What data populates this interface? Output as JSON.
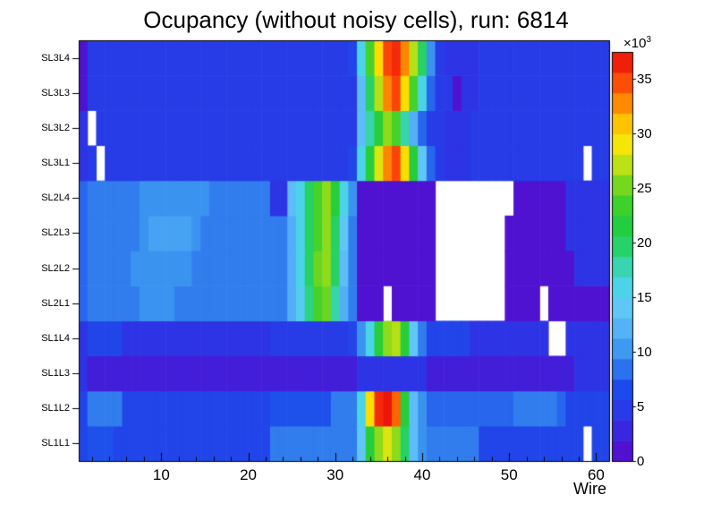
{
  "chart_data": {
    "type": "heatmap",
    "title": "Ocupancy (without noisy cells), run: 6814",
    "xlabel": "Wire",
    "x_range": [
      1,
      61
    ],
    "x_ticks": [
      10,
      20,
      30,
      40,
      50,
      60
    ],
    "x_minor_tick_step": 2,
    "y_labels_bottom_to_top": [
      "SL1L1",
      "SL1L2",
      "SL1L3",
      "SL1L4",
      "SL2L1",
      "SL2L2",
      "SL2L3",
      "SL2L4",
      "SL3L1",
      "SL3L2",
      "SL3L3",
      "SL3L4"
    ],
    "z_axis": {
      "ticks": [
        0,
        5,
        10,
        15,
        20,
        25,
        30,
        35
      ],
      "max": 37.5,
      "scale_base": "×10",
      "scale_exp": "3"
    },
    "value_unit": "counts (×10³)",
    "empty_cells": "white (noisy cells removed)",
    "grid": false,
    "legend_position": "right-colorbar",
    "palette": [
      {
        "t": 0.0,
        "color": "#5c06c8"
      },
      {
        "t": 0.09,
        "color": "#312ee4"
      },
      {
        "t": 0.18,
        "color": "#1c4ceb"
      },
      {
        "t": 0.27,
        "color": "#3c96f0"
      },
      {
        "t": 0.36,
        "color": "#64c3fa"
      },
      {
        "t": 0.44,
        "color": "#46d7e4"
      },
      {
        "t": 0.52,
        "color": "#28d26e"
      },
      {
        "t": 0.58,
        "color": "#23cd3c"
      },
      {
        "t": 0.64,
        "color": "#46d228"
      },
      {
        "t": 0.7,
        "color": "#96dc19"
      },
      {
        "t": 0.75,
        "color": "#e1e60f"
      },
      {
        "t": 0.79,
        "color": "#ffe600"
      },
      {
        "t": 0.84,
        "color": "#ffb400"
      },
      {
        "t": 0.89,
        "color": "#ff7800"
      },
      {
        "t": 0.94,
        "color": "#fa3c0a"
      },
      {
        "t": 1.0,
        "color": "#e80a0a"
      }
    ],
    "rows_bottom_to_top": [
      {
        "label": "SL1L1",
        "values": [
          6,
          7,
          7,
          7,
          6,
          6,
          6,
          6,
          6,
          6,
          6,
          6,
          6,
          6,
          6,
          6,
          6,
          6,
          6,
          6,
          6,
          6,
          9,
          9,
          9,
          9,
          9,
          9,
          9,
          9,
          9,
          9,
          14,
          22,
          26,
          28,
          26,
          20,
          13,
          10,
          9,
          9,
          9,
          9,
          9,
          9,
          6,
          6,
          6,
          6,
          6,
          6,
          6,
          6,
          6,
          6,
          6,
          6,
          null,
          6,
          6
        ]
      },
      {
        "label": "SL1L2",
        "values": [
          6,
          9,
          9,
          9,
          9,
          6,
          6,
          6,
          6,
          6,
          6,
          6,
          6,
          6,
          6,
          6,
          6,
          6,
          6,
          6,
          6,
          6,
          7,
          7,
          7,
          7,
          7,
          7,
          7,
          9,
          9,
          9,
          16,
          30,
          36,
          37,
          34,
          22,
          13,
          10,
          8,
          8,
          8,
          8,
          8,
          8,
          8,
          8,
          8,
          8,
          9,
          9,
          9,
          9,
          9,
          8,
          6,
          6,
          6,
          6,
          6
        ]
      },
      {
        "label": "SL1L3",
        "values": [
          4,
          2,
          2,
          2,
          2,
          2,
          2,
          2,
          2,
          2,
          2,
          2,
          2,
          2,
          2,
          2,
          2,
          2,
          2,
          2,
          2,
          2,
          2,
          2,
          2,
          2,
          2,
          2,
          2,
          2,
          2,
          2,
          4,
          4,
          4,
          4,
          4,
          4,
          4,
          4,
          2,
          2,
          2,
          2,
          2,
          2,
          2,
          2,
          2,
          2,
          2,
          2,
          2,
          2,
          2,
          2,
          2,
          4,
          4,
          4,
          4
        ]
      },
      {
        "label": "SL1L4",
        "values": [
          4,
          6,
          6,
          6,
          6,
          4,
          4,
          4,
          4,
          4,
          4,
          4,
          4,
          4,
          4,
          4,
          4,
          4,
          4,
          4,
          4,
          4,
          5,
          5,
          5,
          5,
          5,
          5,
          5,
          5,
          5,
          6,
          10,
          16,
          22,
          26,
          27,
          22,
          14,
          9,
          6,
          6,
          6,
          6,
          6,
          4,
          4,
          4,
          4,
          4,
          4,
          4,
          4,
          4,
          null,
          null,
          4,
          4,
          4,
          4,
          4
        ]
      },
      {
        "label": "SL2L1",
        "values": [
          8,
          9,
          9,
          9,
          9,
          9,
          9,
          10,
          10,
          10,
          10,
          9,
          9,
          9,
          9,
          9,
          9,
          9,
          9,
          9,
          9,
          9,
          9,
          9,
          12,
          15,
          19,
          24,
          25,
          18,
          12,
          9,
          1,
          1,
          1,
          null,
          1,
          1,
          1,
          1,
          1,
          null,
          null,
          null,
          null,
          null,
          null,
          null,
          null,
          1,
          1,
          1,
          1,
          null,
          1,
          1,
          1,
          1,
          1,
          1,
          1
        ]
      },
      {
        "label": "SL2L2",
        "values": [
          8,
          9,
          9,
          9,
          9,
          9,
          10,
          10,
          10,
          10,
          10,
          10,
          10,
          9,
          9,
          9,
          9,
          9,
          9,
          9,
          9,
          9,
          9,
          9,
          12,
          16,
          20,
          25,
          26,
          20,
          13,
          9,
          1,
          1,
          1,
          1,
          1,
          1,
          1,
          1,
          1,
          null,
          null,
          null,
          null,
          null,
          null,
          null,
          null,
          1,
          1,
          1,
          1,
          1,
          1,
          1,
          1,
          4,
          4,
          4,
          4
        ]
      },
      {
        "label": "SL2L3",
        "values": [
          8,
          9,
          9,
          9,
          9,
          9,
          9,
          10,
          11,
          11,
          11,
          11,
          11,
          10,
          9,
          9,
          9,
          9,
          9,
          9,
          9,
          9,
          9,
          9,
          12,
          16,
          20,
          24,
          26,
          20,
          14,
          9,
          1,
          1,
          1,
          1,
          1,
          1,
          1,
          1,
          1,
          null,
          null,
          null,
          null,
          null,
          null,
          null,
          null,
          1,
          1,
          1,
          1,
          1,
          1,
          1,
          4,
          4,
          4,
          4,
          4
        ]
      },
      {
        "label": "SL2L4",
        "values": [
          8,
          9,
          9,
          9,
          9,
          9,
          9,
          10,
          10,
          10,
          10,
          10,
          10,
          10,
          10,
          9,
          9,
          9,
          9,
          9,
          9,
          9,
          4,
          4,
          13,
          16,
          20,
          24,
          26,
          22,
          16,
          10,
          1,
          1,
          1,
          1,
          1,
          1,
          1,
          1,
          1,
          null,
          null,
          null,
          null,
          null,
          null,
          null,
          null,
          null,
          1,
          1,
          1,
          1,
          1,
          1,
          4,
          4,
          4,
          4,
          4
        ]
      },
      {
        "label": "SL3L1",
        "values": [
          4,
          5,
          null,
          5,
          5,
          5,
          5,
          5,
          5,
          5,
          5,
          5,
          5,
          5,
          5,
          5,
          5,
          5,
          5,
          5,
          5,
          5,
          5,
          5,
          5,
          5,
          5,
          5,
          5,
          5,
          5,
          6,
          16,
          22,
          28,
          33,
          35,
          30,
          22,
          14,
          8,
          5,
          4,
          4,
          4,
          5,
          5,
          5,
          5,
          5,
          5,
          5,
          5,
          5,
          5,
          5,
          5,
          5,
          null,
          5,
          5
        ]
      },
      {
        "label": "SL3L2",
        "values": [
          4,
          null,
          5,
          5,
          5,
          5,
          5,
          5,
          5,
          5,
          5,
          5,
          5,
          5,
          5,
          5,
          5,
          5,
          5,
          5,
          5,
          5,
          5,
          5,
          5,
          5,
          5,
          5,
          5,
          5,
          5,
          5,
          13,
          18,
          22,
          26,
          24,
          18,
          12,
          8,
          5,
          5,
          4,
          4,
          4,
          5,
          5,
          5,
          5,
          5,
          5,
          5,
          5,
          5,
          5,
          5,
          5,
          5,
          5,
          5,
          5
        ]
      },
      {
        "label": "SL3L3",
        "values": [
          1,
          5,
          5,
          5,
          5,
          5,
          5,
          5,
          5,
          5,
          5,
          5,
          5,
          5,
          5,
          5,
          5,
          5,
          5,
          5,
          5,
          5,
          5,
          5,
          5,
          5,
          5,
          5,
          5,
          5,
          5,
          5,
          13,
          20,
          27,
          33,
          35,
          30,
          24,
          16,
          8,
          5,
          5,
          1,
          4,
          4,
          5,
          5,
          5,
          5,
          5,
          5,
          5,
          5,
          5,
          5,
          5,
          5,
          5,
          5,
          5
        ]
      },
      {
        "label": "SL3L4",
        "values": [
          1,
          5,
          5,
          5,
          5,
          5,
          5,
          5,
          5,
          5,
          5,
          5,
          5,
          5,
          5,
          5,
          5,
          5,
          5,
          5,
          5,
          5,
          5,
          5,
          5,
          5,
          5,
          5,
          5,
          5,
          5,
          6,
          16,
          24,
          30,
          35,
          36,
          33,
          27,
          20,
          10,
          5,
          4,
          4,
          4,
          4,
          5,
          5,
          5,
          5,
          5,
          5,
          5,
          5,
          5,
          5,
          5,
          5,
          5,
          5,
          5
        ]
      }
    ]
  }
}
